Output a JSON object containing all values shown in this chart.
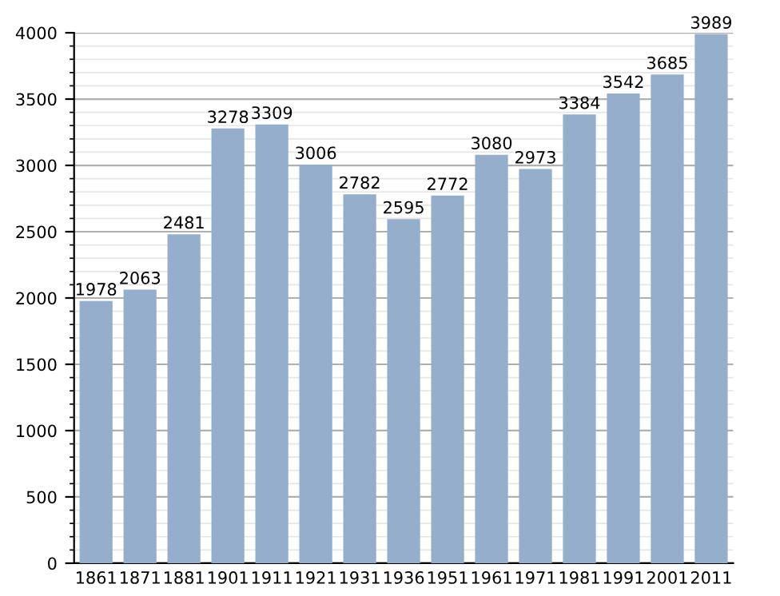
{
  "chart_data": {
    "type": "bar",
    "categories": [
      "1861",
      "1871",
      "1881",
      "1901",
      "1911",
      "1921",
      "1931",
      "1936",
      "1951",
      "1961",
      "1971",
      "1981",
      "1991",
      "2001",
      "2011"
    ],
    "values": [
      1978,
      2063,
      2481,
      3278,
      3309,
      3006,
      2782,
      2595,
      2772,
      3080,
      2973,
      3384,
      3542,
      3685,
      3989
    ],
    "color": "#95aecb",
    "ylim": [
      0,
      4000
    ],
    "yticks": [
      0,
      500,
      1000,
      1500,
      2000,
      2500,
      3000,
      3500,
      4000
    ],
    "grid": "y",
    "data_labels": true
  }
}
